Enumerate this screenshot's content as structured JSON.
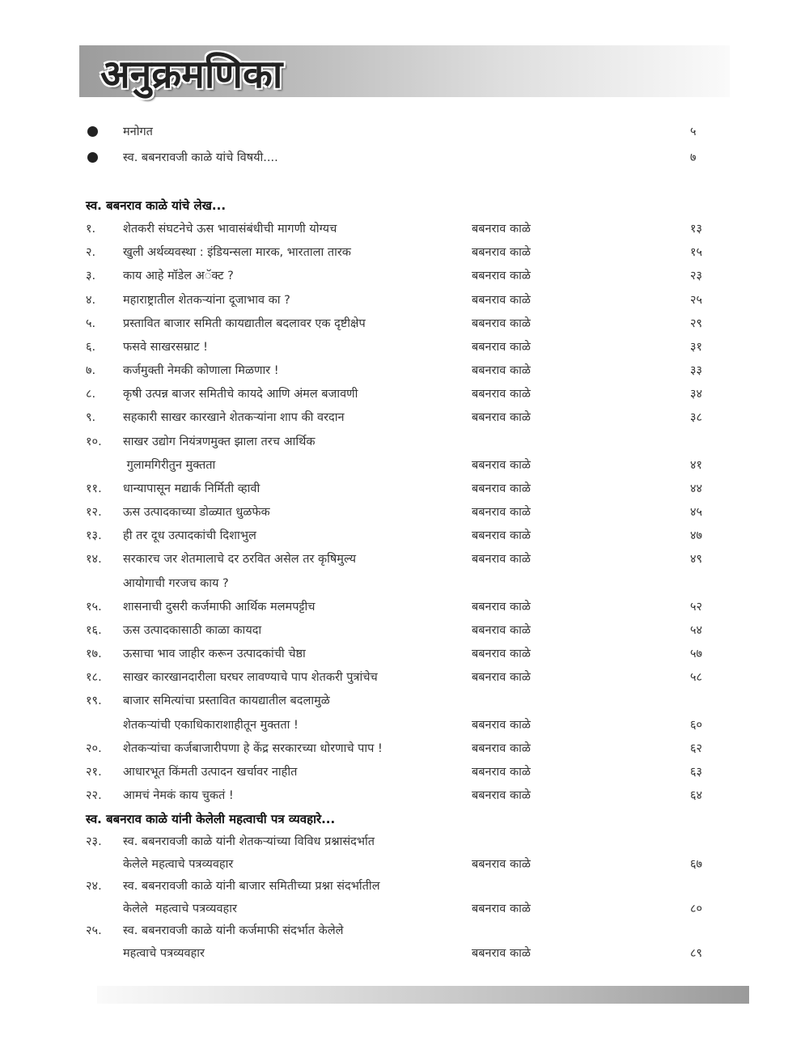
{
  "header": {
    "title": "अनुक्रमणिका"
  },
  "intro_items": [
    {
      "icon": "bullet-icon",
      "text": "मनोगत",
      "page": "५"
    },
    {
      "icon": "bullet-icon",
      "text": "स्व. बबनरावजी काळे यांचे विषयी....",
      "page": "७"
    }
  ],
  "sections": [
    {
      "heading": "स्व. बबनराव काळे यांचे लेख...",
      "entries": [
        {
          "num": "१.",
          "lines": [
            {
              "text": "शेतकरी संघटनेचे ऊस भावासंबंधीची मागणी योग्यच",
              "author": "बबनराव काळे",
              "page": "१३"
            }
          ]
        },
        {
          "num": "२.",
          "lines": [
            {
              "text": "खुली अर्थव्यवस्था : इंडियन्सला मारक, भारताला तारक",
              "author": "बबनराव काळे",
              "page": "१५"
            }
          ]
        },
        {
          "num": "३.",
          "lines": [
            {
              "text": "काय आहे मॉडेल अॅक्ट ?",
              "author": "बबनराव काळे",
              "page": "२३"
            }
          ]
        },
        {
          "num": "४.",
          "lines": [
            {
              "text": "महाराष्ट्रातील शेतकऱ्यांना दूजाभाव का ?",
              "author": "बबनराव काळे",
              "page": "२५"
            }
          ]
        },
        {
          "num": "५.",
          "lines": [
            {
              "text": "प्रस्तावित बाजार समिती कायद्यातील बदलावर एक दृष्टीक्षेप",
              "author": "बबनराव काळे",
              "page": "२९"
            }
          ]
        },
        {
          "num": "६.",
          "lines": [
            {
              "text": "फसवे साखरसम्राट !",
              "author": "बबनराव काळे",
              "page": "३१"
            }
          ]
        },
        {
          "num": "७.",
          "lines": [
            {
              "text": "कर्जमुक्ती नेमकी कोणाला मिळणार !",
              "author": "बबनराव काळे",
              "page": "३३"
            }
          ]
        },
        {
          "num": "८.",
          "lines": [
            {
              "text": "कृषी उत्पन्न बाजर समितीचे कायदे आणि अंमल बजावणी",
              "author": "बबनराव काळे",
              "page": "३४"
            }
          ]
        },
        {
          "num": "९.",
          "lines": [
            {
              "text": "सहकारी साखर कारखाने शेतकऱ्यांना शाप की वरदान",
              "author": "बबनराव काळे",
              "page": "३८"
            }
          ]
        },
        {
          "num": "१०.",
          "lines": [
            {
              "text": "साखर उद्योग नियंत्रणमुक्त झाला तरच आर्थिक"
            },
            {
              "text": " गुलामगिरीतुन मुक्तता",
              "author": "बबनराव काळे",
              "page": "४१"
            }
          ]
        },
        {
          "num": "११.",
          "lines": [
            {
              "text": "धान्यापासून मद्यार्क निर्मिती व्हावी",
              "author": "बबनराव काळे",
              "page": "४४"
            }
          ]
        },
        {
          "num": "१२.",
          "lines": [
            {
              "text": "ऊस उत्पादकाच्या डोळ्यात धुळफेक",
              "author": "बबनराव काळे",
              "page": "४५"
            }
          ]
        },
        {
          "num": "१३.",
          "lines": [
            {
              "text": "ही तर दूध उत्पादकांची दिशाभुल",
              "author": "बबनराव काळे",
              "page": "४७"
            }
          ]
        },
        {
          "num": "१४.",
          "lines": [
            {
              "text": "सरकारच जर शेतमालाचे दर ठरवित असेल तर कृषिमुल्य",
              "author": "बबनराव काळे",
              "page": "४९"
            },
            {
              "text": "आयोगाची गरजच काय ?"
            }
          ]
        },
        {
          "num": "१५.",
          "lines": [
            {
              "text": "शासनाची दुसरी कर्जमाफी आर्थिक मलमपट्टीच",
              "author": "बबनराव काळे",
              "page": "५२"
            }
          ]
        },
        {
          "num": "१६.",
          "lines": [
            {
              "text": "ऊस उत्पादकासाठी काळा कायदा",
              "author": "बबनराव काळे",
              "page": "५४"
            }
          ]
        },
        {
          "num": "१७.",
          "lines": [
            {
              "text": "ऊसाचा भाव जाहीर करून उत्पादकांची चेष्ठा",
              "author": "बबनराव काळे",
              "page": "५७"
            }
          ]
        },
        {
          "num": "१८.",
          "lines": [
            {
              "text": "साखर कारखानदारीला घरघर लावण्याचे पाप शेतकरी पुत्रांचेच",
              "author": "बबनराव काळे",
              "page": "५८"
            }
          ]
        },
        {
          "num": "१९.",
          "lines": [
            {
              "text": "बाजार समित्यांचा प्रस्तावित कायद्यातील बदलामुळे"
            },
            {
              "text": "शेतकऱ्यांची एकाधिकाराशाहीतून मुक्तता !",
              "author": "बबनराव काळे",
              "page": "६०"
            }
          ]
        },
        {
          "num": "२०.",
          "lines": [
            {
              "text": "शेतकऱ्यांचा कर्जबाजारीपणा हे केंद्र सरकारच्या धोरणाचे पाप !",
              "author": "बबनराव काळे",
              "page": "६२"
            }
          ]
        },
        {
          "num": "२१.",
          "lines": [
            {
              "text": "आधारभूत किंमती उत्पादन खर्चावर नाहीत",
              "author": "बबनराव काळे",
              "page": "६३"
            }
          ]
        },
        {
          "num": "२२.",
          "lines": [
            {
              "text": "आमचं नेमकं काय चुकतं !",
              "author": "बबनराव काळे",
              "page": "६४"
            }
          ]
        }
      ]
    },
    {
      "heading": "स्व. बबनराव काळे यांनी केलेली महत्वाची पत्र व्यवहारे...",
      "entries": [
        {
          "num": "२३.",
          "lines": [
            {
              "text": "स्व. बबनरावजी काळे यांनी शेतकऱ्यांच्या विविध प्रश्नासंदर्भात"
            },
            {
              "text": "केलेले महत्वाचे पत्रव्यवहार",
              "author": "बबनराव काळे",
              "page": "६७"
            }
          ]
        },
        {
          "num": "२४.",
          "lines": [
            {
              "text": "स्व. बबनरावजी काळे यांनी बाजार समितीच्या प्रश्ना संदर्भातील"
            },
            {
              "text": "केलेले  महत्वाचे पत्रव्यवहार",
              "author": "बबनराव काळे",
              "page": "८०"
            }
          ]
        },
        {
          "num": "२५.",
          "lines": [
            {
              "text": "स्व. बबनरावजी काळे यांनी कर्जमाफी संदर्भात केलेले"
            },
            {
              "text": "महत्वाचे पत्रव्यवहार",
              "author": "बबनराव काळे",
              "page": "८९"
            }
          ]
        }
      ]
    }
  ]
}
